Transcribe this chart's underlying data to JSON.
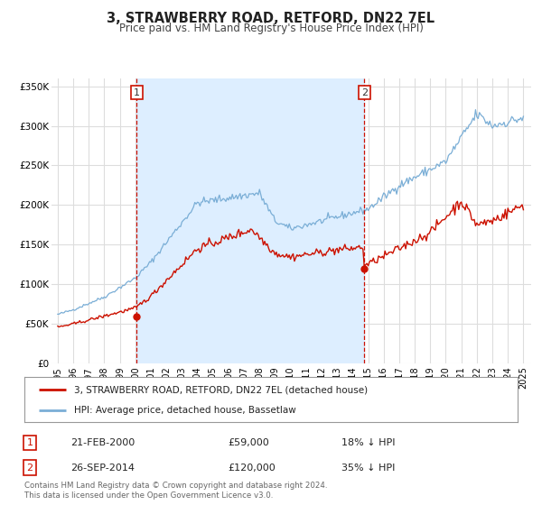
{
  "title": "3, STRAWBERRY ROAD, RETFORD, DN22 7EL",
  "subtitle": "Price paid vs. HM Land Registry's House Price Index (HPI)",
  "bg_color": "#ffffff",
  "plot_bg_color": "#ffffff",
  "grid_color": "#dddddd",
  "shade_color": "#ddeeff",
  "hpi_color": "#7aaed6",
  "price_color": "#cc1100",
  "marker1_x": 2000.083,
  "marker2_x": 2014.75,
  "marker1_y": 59000,
  "marker2_y": 120000,
  "legend_line1": "3, STRAWBERRY ROAD, RETFORD, DN22 7EL (detached house)",
  "legend_line2": "HPI: Average price, detached house, Bassetlaw",
  "footer1": "Contains HM Land Registry data © Crown copyright and database right 2024.",
  "footer2": "This data is licensed under the Open Government Licence v3.0.",
  "ylim": [
    0,
    360000
  ],
  "yticks": [
    0,
    50000,
    100000,
    150000,
    200000,
    250000,
    300000,
    350000
  ],
  "ytick_labels": [
    "£0",
    "£50K",
    "£100K",
    "£150K",
    "£200K",
    "£250K",
    "£300K",
    "£350K"
  ],
  "xlim_left": 1994.6,
  "xlim_right": 2025.5
}
